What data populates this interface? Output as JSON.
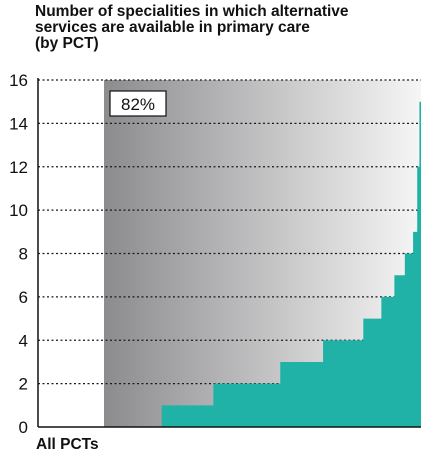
{
  "chart_data": {
    "type": "area",
    "title_lines": [
      "Number of specialities in which alternative",
      "services are available in primary care",
      "(by PCT)"
    ],
    "xlabel": "All PCTs",
    "ylabel": "",
    "ylim": [
      0,
      16
    ],
    "yticks": [
      0,
      2,
      4,
      6,
      8,
      10,
      12,
      14,
      16
    ],
    "grid": true,
    "annotation": "82%",
    "annotation_value": 82,
    "x_pct": [
      0,
      18.2,
      18.2,
      34.5,
      34.5,
      55.6,
      55.6,
      69.1,
      69.1,
      81.8,
      81.8,
      87.5,
      87.5,
      91.6,
      91.6,
      94.9,
      94.9,
      97.5,
      97.5,
      98.8,
      98.8,
      99.5,
      99.5,
      100
    ],
    "y": [
      0,
      0,
      1,
      1,
      2,
      2,
      3,
      3,
      4,
      4,
      5,
      5,
      6,
      6,
      7,
      7,
      8,
      8,
      9,
      9,
      12,
      12,
      15,
      15
    ],
    "colors": {
      "area": "#20b2a6",
      "band_dark": "#8c8c8e",
      "band_light": "#f6f6f7",
      "grid": "#1a1a1a",
      "axis": "#111111"
    }
  }
}
